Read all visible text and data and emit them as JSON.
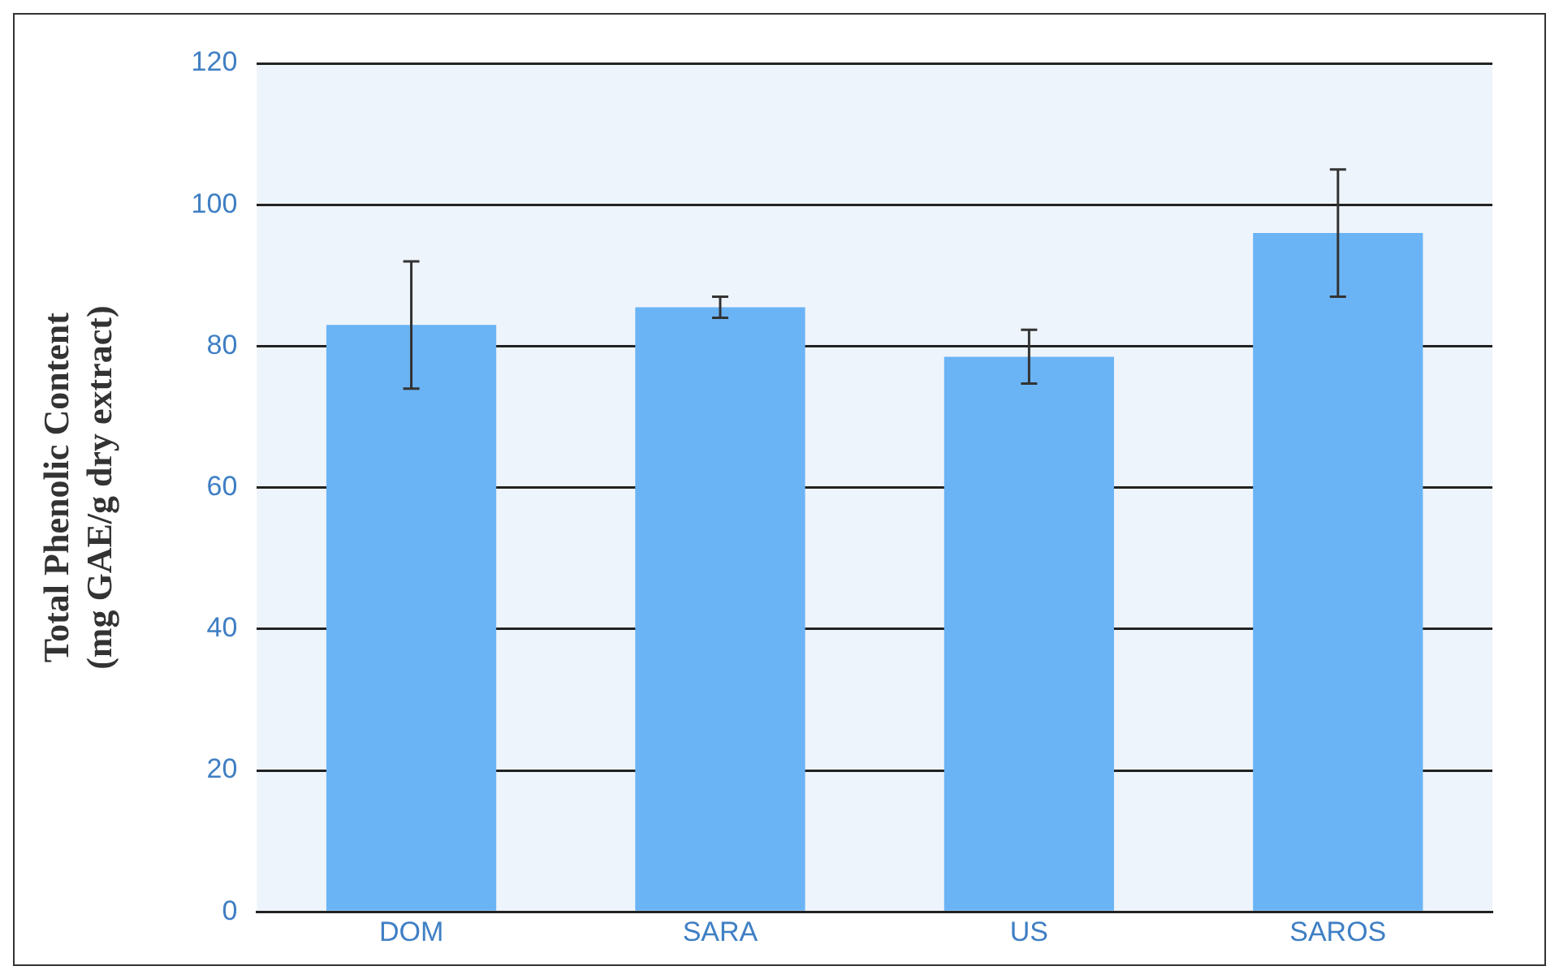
{
  "chart_data": {
    "type": "bar",
    "ylabel": "Total Phenolic Content\n(mg GAE/g dry extract)",
    "categories": [
      "DOM",
      "SARA",
      "US",
      "SAROS"
    ],
    "values": [
      83,
      85.5,
      78.5,
      96
    ],
    "errors": [
      9,
      1.5,
      3.8,
      9
    ],
    "color": "#6ab4f5",
    "ylim": [
      0,
      120
    ],
    "yticks": [
      0,
      20,
      40,
      60,
      80,
      100,
      120
    ],
    "grid": "y"
  }
}
